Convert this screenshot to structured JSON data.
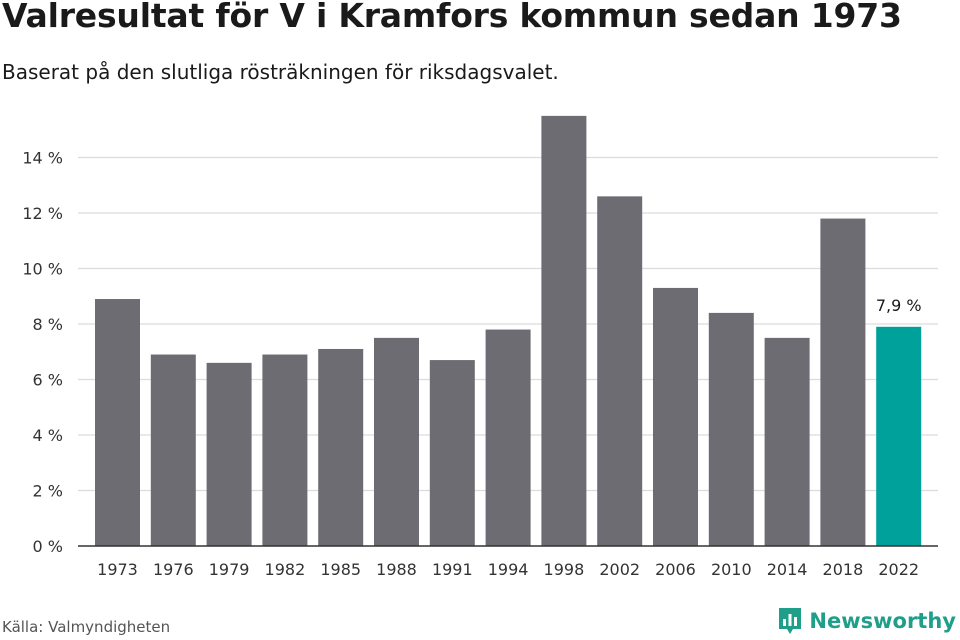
{
  "header": {
    "title": "Valresultat för V i Kramfors kommun sedan 1973",
    "subtitle": "Baserat på den slutliga rösträkningen för riksdagsvalet."
  },
  "footer": {
    "source": "Källa: Valmyndigheten",
    "brand": "Newsworthy"
  },
  "colors": {
    "bar": "#6d6c72",
    "highlight": "#00a19a",
    "grid": "#dcdcdc",
    "axis": "#333333",
    "brand": "#1f9e8a"
  },
  "icons": {
    "brand_logo": "bar-chart-logo-icon"
  },
  "chart_data": {
    "type": "bar",
    "categories": [
      "1973",
      "1976",
      "1979",
      "1982",
      "1985",
      "1988",
      "1991",
      "1994",
      "1998",
      "2002",
      "2006",
      "2010",
      "2014",
      "2018",
      "2022"
    ],
    "values": [
      8.9,
      6.9,
      6.6,
      6.9,
      7.1,
      7.5,
      6.7,
      7.8,
      15.5,
      12.6,
      9.3,
      8.4,
      7.5,
      11.8,
      7.9
    ],
    "highlight_index": 14,
    "highlight_label": "7,9 %",
    "yticks": [
      0,
      2,
      4,
      6,
      8,
      10,
      12,
      14
    ],
    "ytick_labels": [
      "0 %",
      "2 %",
      "4 %",
      "6 %",
      "8 %",
      "10 %",
      "12 %",
      "14 %"
    ],
    "ylim": [
      0,
      16
    ],
    "grid": true,
    "title": "Valresultat för V i Kramfors kommun sedan 1973",
    "xlabel": "",
    "ylabel": ""
  }
}
